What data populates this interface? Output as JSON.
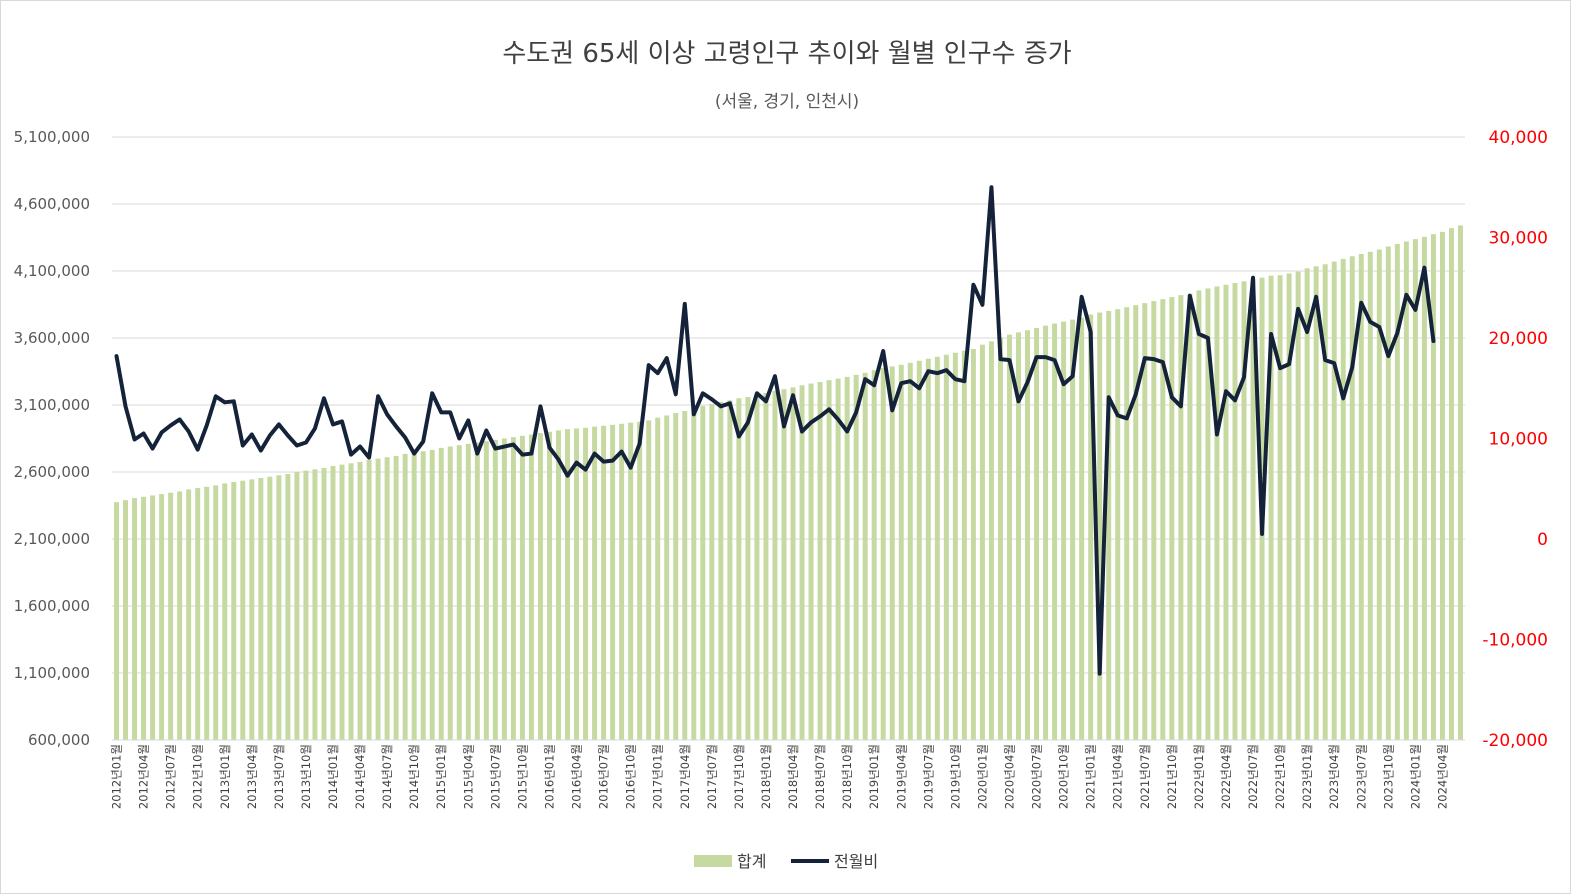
{
  "chart_data": {
    "type": "bar+line",
    "title": "수도권 65세 이상 고령인구 추이와 월별 인구수 증가",
    "subtitle": "(서울, 경기, 인천시)",
    "y_left": {
      "min": 600000,
      "max": 5100000,
      "step": 500000,
      "tick_labels": [
        "600,000",
        "1,100,000",
        "1,600,000",
        "2,100,000",
        "2,600,000",
        "3,100,000",
        "3,600,000",
        "4,100,000",
        "4,600,000",
        "5,100,000"
      ]
    },
    "y_right": {
      "min": -20000,
      "max": 40000,
      "step": 10000,
      "color": "#ff0000",
      "tick_labels": [
        "-20,000",
        "-10,000",
        "0",
        "10,000",
        "20,000",
        "30,000",
        "40,000"
      ]
    },
    "grid": true,
    "legend_position": "bottom",
    "x_labels": [
      "2012년01월",
      "2012년04월",
      "2012년07월",
      "2012년10월",
      "2013년01월",
      "2013년04월",
      "2013년07월",
      "2013년10월",
      "2014년01월",
      "2014년04월",
      "2014년07월",
      "2014년10월",
      "2015년01월",
      "2015년04월",
      "2015년07월",
      "2015년10월",
      "2016년01월",
      "2016년04월",
      "2016년07월",
      "2016년10월",
      "2017년01월",
      "2017년04월",
      "2017년07월",
      "2017년10월",
      "2018년01월",
      "2018년04월",
      "2018년07월",
      "2018년10월",
      "2019년01월",
      "2019년04월",
      "2019년07월",
      "2019년10월",
      "2020년01월",
      "2020년04월",
      "2020년07월",
      "2020년10월",
      "2021년01월",
      "2021년04월",
      "2021년07월",
      "2021년10월",
      "2022년01월",
      "2022년04월",
      "2022년07월",
      "2022년10월",
      "2023년01월",
      "2023년04월",
      "2023년07월",
      "2023년10월",
      "2024년01월",
      "2024년04월"
    ],
    "series": [
      {
        "name": "합계",
        "type": "bar",
        "axis": "left",
        "color": "#c5d9a0",
        "start": 2375000,
        "end": 4440000,
        "values": [
          2375000,
          2390000,
          2405000,
          2415000,
          2425000,
          2435000,
          2445000,
          2455000,
          2470000,
          2480000,
          2490000,
          2500000,
          2515000,
          2525000,
          2535000,
          2545000,
          2555000,
          2565000,
          2575000,
          2585000,
          2600000,
          2610000,
          2620000,
          2630000,
          2645000,
          2655000,
          2665000,
          2675000,
          2690000,
          2700000,
          2710000,
          2720000,
          2735000,
          2745000,
          2755000,
          2765000,
          2780000,
          2790000,
          2800000,
          2810000,
          2820000,
          2830000,
          2840000,
          2850000,
          2860000,
          2870000,
          2880000,
          2890000,
          2900000,
          2910000,
          2920000,
          2925000,
          2930000,
          2938000,
          2945000,
          2952000,
          2960000,
          2968000,
          2975000,
          2985000,
          3005000,
          3022000,
          3040000,
          3055000,
          3078000,
          3093000,
          3108000,
          3123000,
          3135000,
          3150000,
          3160000,
          3175000,
          3190000,
          3205000,
          3218000,
          3232000,
          3247000,
          3260000,
          3272000,
          3285000,
          3297000,
          3310000,
          3325000,
          3340000,
          3360000,
          3375000,
          3388000,
          3400000,
          3415000,
          3430000,
          3445000,
          3460000,
          3475000,
          3490000,
          3505000,
          3518000,
          3550000,
          3575000,
          3600000,
          3625000,
          3642000,
          3658000,
          3675000,
          3692000,
          3708000,
          3722000,
          3737000,
          3752000,
          3775000,
          3790000,
          3802000,
          3815000,
          3830000,
          3845000,
          3860000,
          3875000,
          3890000,
          3905000,
          3920000,
          3932000,
          3955000,
          3970000,
          3985000,
          3997000,
          4010000,
          4023000,
          4038000,
          4050000,
          4065000,
          4068000,
          4082000,
          4095000,
          4120000,
          4135000,
          4150000,
          4170000,
          4190000,
          4210000,
          4227000,
          4243000,
          4260000,
          4283000,
          4302000,
          4320000,
          4338000,
          4355000,
          4375000,
          4392000,
          4420000,
          4440000
        ]
      },
      {
        "name": "전월비",
        "type": "line",
        "axis": "right",
        "color": "#142339",
        "values": [
          18200,
          13200,
          9900,
          10500,
          9000,
          10600,
          11300,
          11900,
          10700,
          8900,
          11300,
          14200,
          13600,
          13700,
          9300,
          10400,
          8800,
          10300,
          11400,
          10300,
          9300,
          9600,
          11000,
          14000,
          11400,
          11700,
          8400,
          9200,
          8100,
          14200,
          12400,
          11200,
          10100,
          8500,
          9700,
          14500,
          12600,
          12600,
          10000,
          11800,
          8500,
          10800,
          9000,
          9200,
          9400,
          8400,
          8500,
          13200,
          9100,
          7900,
          6300,
          7600,
          6900,
          8500,
          7700,
          7800,
          8700,
          7100,
          9500,
          17300,
          16500,
          18000,
          14400,
          23400,
          12400,
          14500,
          13900,
          13200,
          13500,
          10200,
          11600,
          14500,
          13700,
          16200,
          11200,
          14300,
          10700,
          11600,
          12200,
          12900,
          11900,
          10700,
          12600,
          15900,
          15300,
          18700,
          12800,
          15500,
          15700,
          15000,
          16700,
          16500,
          16800,
          15900,
          15700,
          25300,
          23300,
          35000,
          17900,
          17800,
          13700,
          15600,
          18100,
          18100,
          17800,
          15400,
          16200,
          24100,
          20600,
          -13400,
          14100,
          12300,
          12000,
          14400,
          18000,
          17900,
          17600,
          14100,
          13200,
          24200,
          20400,
          20000,
          10400,
          14700,
          13800,
          16100,
          26000,
          500,
          20400,
          17000,
          17400,
          22900,
          20600,
          24100,
          17800,
          17500,
          14000,
          17100,
          23500,
          21600,
          21100,
          18200,
          20500,
          24300,
          22800,
          27000,
          19700
        ]
      }
    ]
  }
}
